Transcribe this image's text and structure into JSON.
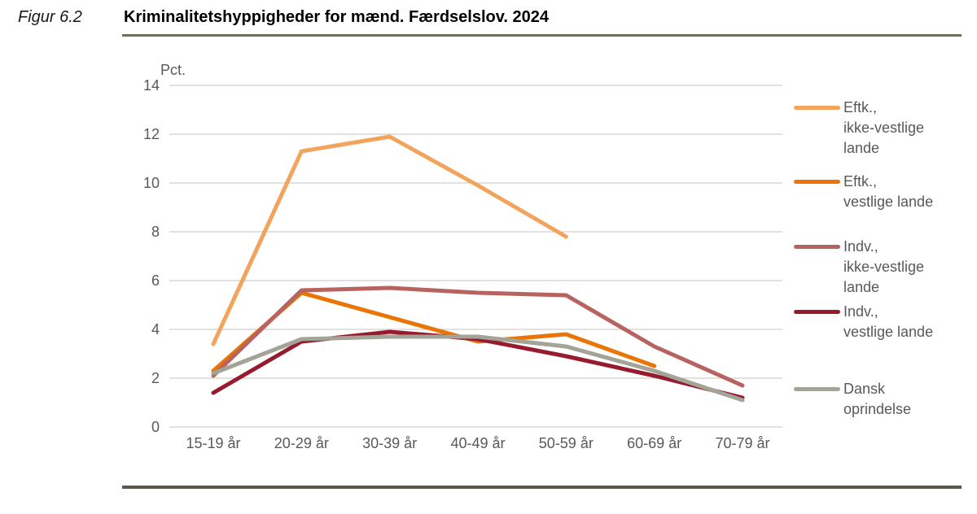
{
  "figure": {
    "label": "Figur 6.2",
    "title": "Kriminalitetshyppigheder for mænd. Færdselslov. 2024"
  },
  "chart_data": {
    "type": "line",
    "title": "Kriminalitetshyppigheder for mænd. Færdselslov. 2024",
    "xlabel": "",
    "ylabel": "Pct.",
    "categories": [
      "15-19 år",
      "20-29 år",
      "30-39 år",
      "40-49 år",
      "50-59 år",
      "60-69 år",
      "70-79 år"
    ],
    "series": [
      {
        "name": "Eftk., ikke-vestlige lande",
        "color": "#f2a45c",
        "values": [
          3.4,
          11.3,
          11.9,
          9.9,
          7.8,
          null,
          null
        ]
      },
      {
        "name": "Eftk., vestlige lande",
        "color": "#e87506",
        "values": [
          2.3,
          5.5,
          4.5,
          3.5,
          3.8,
          2.5,
          null
        ]
      },
      {
        "name": "Indv., ikke-vestlige lande",
        "color": "#b76360",
        "values": [
          2.1,
          5.6,
          5.7,
          5.5,
          5.4,
          3.3,
          1.7
        ]
      },
      {
        "name": "Indv., vestlige lande",
        "color": "#971b2e",
        "values": [
          1.4,
          3.5,
          3.9,
          3.6,
          2.9,
          2.1,
          1.2
        ]
      },
      {
        "name": "Dansk oprindelse",
        "color": "#a3a397",
        "values": [
          2.2,
          3.6,
          3.7,
          3.7,
          3.3,
          2.3,
          1.1
        ]
      }
    ],
    "ylim": [
      0,
      14
    ],
    "yticks": [
      0,
      2,
      4,
      6,
      8,
      10,
      12,
      14
    ],
    "grid": true,
    "gridline_color": "#c6c3bf",
    "legend_position": "right"
  },
  "legend": {
    "items": [
      {
        "lines": [
          "Eftk.,",
          "ikke-vestlige",
          "lande"
        ]
      },
      {
        "lines": [
          "Eftk.,",
          "vestlige lande"
        ]
      },
      {
        "lines": [
          "Indv.,",
          "ikke-vestlige",
          "lande"
        ]
      },
      {
        "lines": [
          "Indv.,",
          "vestlige lande"
        ]
      },
      {
        "lines": [
          "Dansk",
          "oprindelse"
        ]
      }
    ]
  }
}
